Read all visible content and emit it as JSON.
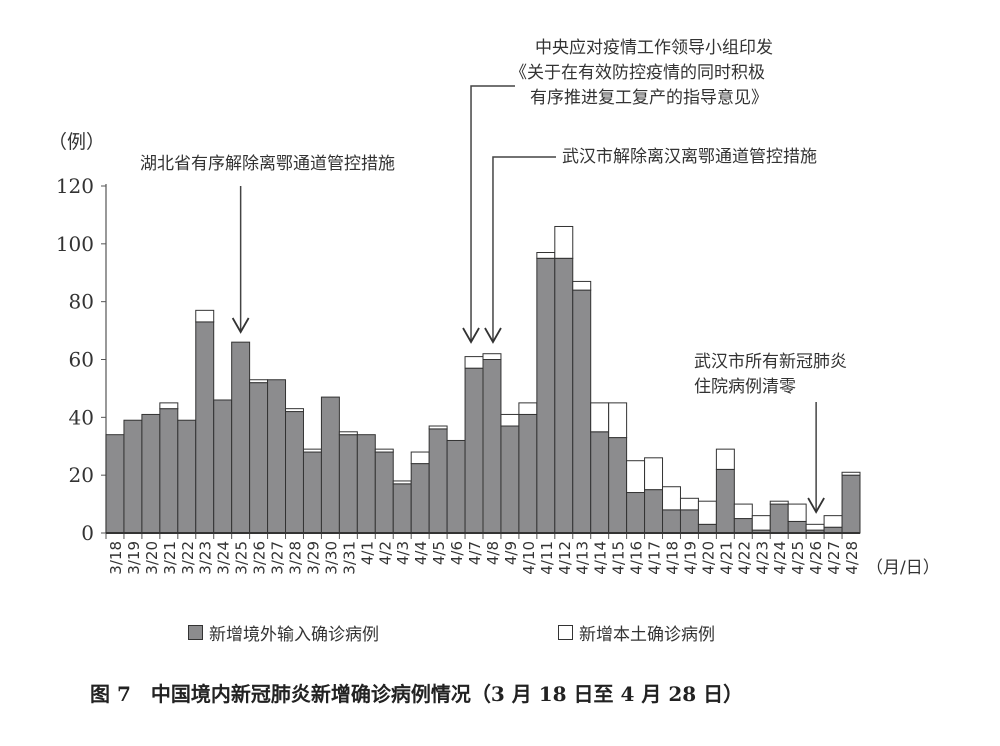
{
  "chart_data": {
    "type": "bar",
    "stacked": true,
    "title": "",
    "ylabel": "（例）",
    "xlabel": "（月/日）",
    "ylim": [
      0,
      120
    ],
    "yticks": [
      0,
      20,
      40,
      60,
      80,
      100,
      120
    ],
    "grid": false,
    "legend_position": "bottom",
    "categories": [
      "3/18",
      "3/19",
      "3/20",
      "3/21",
      "3/22",
      "3/23",
      "3/24",
      "3/25",
      "3/26",
      "3/27",
      "3/28",
      "3/29",
      "3/30",
      "3/31",
      "4/1",
      "4/2",
      "4/3",
      "4/4",
      "4/5",
      "4/6",
      "4/7",
      "4/8",
      "4/9",
      "4/10",
      "4/11",
      "4/12",
      "4/13",
      "4/14",
      "4/15",
      "4/16",
      "4/17",
      "4/18",
      "4/19",
      "4/20",
      "4/21",
      "4/22",
      "4/23",
      "4/24",
      "4/25",
      "4/26",
      "4/27",
      "4/28"
    ],
    "series": [
      {
        "name": "新增境外输入确诊病例",
        "color": "#8c8c8e",
        "values": [
          34,
          39,
          41,
          43,
          39,
          73,
          46,
          66,
          52,
          53,
          42,
          28,
          47,
          34,
          34,
          28,
          17,
          24,
          36,
          32,
          57,
          60,
          37,
          41,
          95,
          95,
          84,
          35,
          33,
          14,
          15,
          8,
          8,
          3,
          22,
          5,
          1,
          10,
          4,
          1,
          2,
          20
        ]
      },
      {
        "name": "新增本土确诊病例",
        "color": "#ffffff",
        "values": [
          0,
          0,
          0,
          2,
          0,
          4,
          0,
          0,
          1,
          0,
          1,
          1,
          0,
          1,
          0,
          1,
          1,
          4,
          1,
          0,
          4,
          2,
          4,
          4,
          2,
          11,
          3,
          10,
          12,
          11,
          11,
          8,
          4,
          8,
          7,
          5,
          5,
          1,
          6,
          2,
          4,
          1
        ]
      }
    ],
    "annotations": [
      {
        "text": "湖北省有序解除离鄂通道管控措施",
        "date": "3/25"
      },
      {
        "text": [
          "中央应对疫情工作领导小组印发",
          "《关于在有效防控疫情的同时积极",
          "有序推进复工复产的指导意见》"
        ],
        "date": "4/7"
      },
      {
        "text": "武汉市解除离汉离鄂通道管控措施",
        "date": "4/8"
      },
      {
        "text": [
          "武汉市所有新冠肺炎",
          "住院病例清零"
        ],
        "date": "4/26"
      }
    ]
  },
  "caption": "图 7　中国境内新冠肺炎新增确诊病例情况（3 月 18 日至 4 月 28 日）"
}
